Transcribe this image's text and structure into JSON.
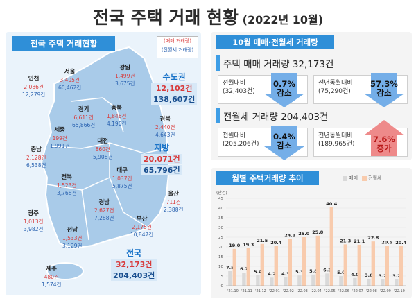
{
  "header": {
    "title": "전국 주택 거래 현황",
    "subtitle": "(2022년 10월)"
  },
  "left_panel": {
    "tag": "전국 주택 거래현황",
    "legend": {
      "sale": "(매매 거래량)",
      "rent": "(전월세 거래량)"
    },
    "regions": [
      {
        "name": "서울",
        "sale": "3,405건",
        "rent": "60,462건"
      },
      {
        "name": "강원",
        "sale": "1,499건",
        "rent": "3,675건"
      },
      {
        "name": "인천",
        "sale": "2,086건",
        "rent": "12,279건"
      },
      {
        "name": "경기",
        "sale": "6,611건",
        "rent": "65,866건"
      },
      {
        "name": "충북",
        "sale": "1,846건",
        "rent": "4,190건"
      },
      {
        "name": "경북",
        "sale": "2,440건",
        "rent": "4,643건"
      },
      {
        "name": "세종",
        "sale": "199건",
        "rent": "1,991건"
      },
      {
        "name": "대전",
        "sale": "860건",
        "rent": "5,908건"
      },
      {
        "name": "충남",
        "sale": "2,128건",
        "rent": "6,538건"
      },
      {
        "name": "대구",
        "sale": "1,037건",
        "rent": "5,875건"
      },
      {
        "name": "전북",
        "sale": "1,523건",
        "rent": "3,768건"
      },
      {
        "name": "울산",
        "sale": "711건",
        "rent": "2,388건"
      },
      {
        "name": "경남",
        "sale": "2,627건",
        "rent": "7,288건"
      },
      {
        "name": "광주",
        "sale": "1,013건",
        "rent": "3,982건"
      },
      {
        "name": "부산",
        "sale": "2,175건",
        "rent": "10,847건"
      },
      {
        "name": "전남",
        "sale": "1,533건",
        "rent": "3,129건"
      },
      {
        "name": "제주",
        "sale": "480건",
        "rent": "1,574건"
      }
    ],
    "summary": {
      "capital": {
        "name": "수도권",
        "sale": "12,102건",
        "rent": "138,607건"
      },
      "local": {
        "name": "지방",
        "sale": "20,071건",
        "rent": "65,796건"
      },
      "national": {
        "name": "전국",
        "sale": "32,173건",
        "rent": "204,403건"
      }
    }
  },
  "right_top": {
    "tag": "10월 매매·전월세 거래량",
    "sale": {
      "heading": "주택 매매 거래량 32,173건",
      "mom": {
        "label": "전월대비",
        "prev": "(32,403건)",
        "pct": "0.7%",
        "dir": "감소"
      },
      "yoy": {
        "label": "전년동월대비",
        "prev": "(75,290건)",
        "pct": "57.3%",
        "dir": "감소"
      }
    },
    "rent": {
      "heading": "전월세 거래량 204,403건",
      "mom": {
        "label": "전월대비",
        "prev": "(205,206건)",
        "pct": "0.4%",
        "dir": "감소"
      },
      "yoy": {
        "label": "전년동월대비",
        "prev": "(189,965건)",
        "pct": "7.6%",
        "dir": "증가"
      }
    },
    "colors": {
      "decrease": "#74aee8",
      "increase": "#ee8a8a"
    }
  },
  "right_bottom": {
    "tag": "월별 주택거래량 추이"
  },
  "chart_data": {
    "type": "bar",
    "title": "월별 주택거래량 추이",
    "ylabel": "(만건)",
    "ylim": [
      0,
      45
    ],
    "yticks": [
      0,
      5,
      10,
      15,
      20,
      25,
      30,
      35,
      40,
      45
    ],
    "categories": [
      "'21.10",
      "'21.11",
      "'21.12",
      "'22.01",
      "'22.02",
      "'22.03",
      "'22.04",
      "'22.05",
      "'22.06",
      "'22.07",
      "'22.08",
      "'22.09",
      "'22.10"
    ],
    "series": [
      {
        "name": "매매",
        "color": "#d9d9d9",
        "values": [
          7.5,
          6.7,
          5.4,
          4.2,
          4.3,
          5.3,
          5.8,
          6.3,
          5.0,
          4.0,
          3.6,
          3.2,
          3.2
        ]
      },
      {
        "name": "전월세",
        "color": "#f8cbad",
        "values": [
          19.0,
          19.3,
          21.5,
          20.4,
          24.1,
          25.0,
          25.8,
          40.4,
          21.3,
          21.1,
          22.8,
          20.5,
          20.4
        ]
      }
    ],
    "grid": true,
    "legend": "top-right"
  }
}
